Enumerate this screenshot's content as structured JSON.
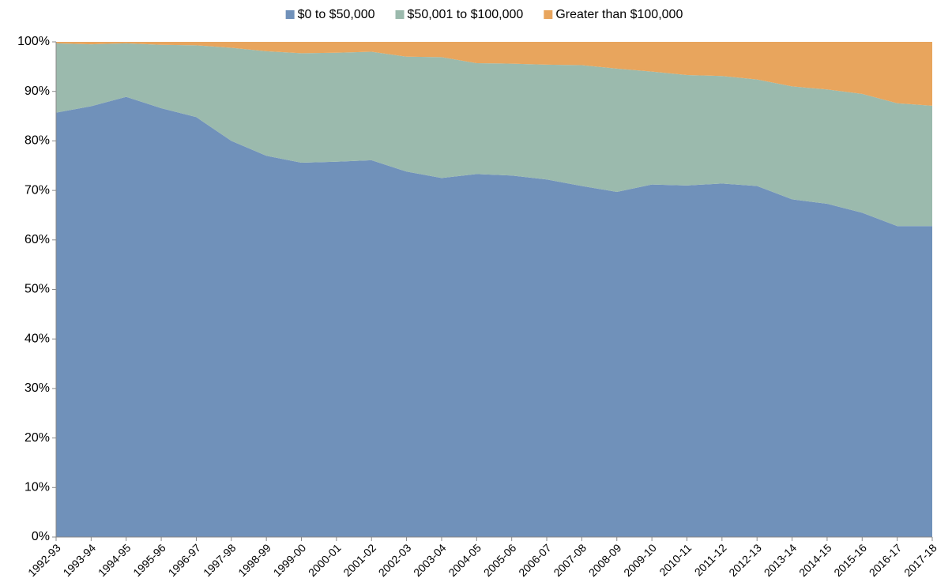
{
  "chart_data": {
    "type": "stacked_area",
    "categories": [
      "1992-93",
      "1993-94",
      "1994-95",
      "1995-96",
      "1996-97",
      "1997-98",
      "1998-99",
      "1999-00",
      "2000-01",
      "2001-02",
      "2002-03",
      "2003-04",
      "2004-05",
      "2005-06",
      "2006-07",
      "2007-08",
      "2008-09",
      "2009-10",
      "2010-11",
      "2011-12",
      "2012-13",
      "2013-14",
      "2014-15",
      "2015-16",
      "2016-17",
      "2017-18"
    ],
    "series": [
      {
        "name": "$0 to $50,000",
        "color": "#7091ba",
        "values": [
          85.7,
          87,
          88.9,
          86.6,
          84.8,
          80,
          77,
          75.6,
          75.8,
          76.1,
          73.8,
          72.5,
          73.3,
          73,
          72.2,
          70.9,
          69.7,
          71.2,
          71,
          71.4,
          70.9,
          68.2,
          67.3,
          65.5,
          62.8,
          62.8
        ]
      },
      {
        "name": "$50,001 to $100,000",
        "color": "#9bbaad",
        "values": [
          14.0,
          12.5,
          10.8,
          12.8,
          14.5,
          18.8,
          21.1,
          22.1,
          22.0,
          21.9,
          23.2,
          24.4,
          22.4,
          22.6,
          23.2,
          24.4,
          24.9,
          22.8,
          22.3,
          21.7,
          21.5,
          22.8,
          23.1,
          24.0,
          24.8,
          24.3
        ]
      },
      {
        "name": "Greater than $100,000",
        "color": "#e8a55d",
        "values": [
          0.3,
          0.5,
          0.3,
          0.6,
          0.7,
          1.2,
          1.9,
          2.3,
          2.2,
          2.0,
          3.0,
          3.1,
          4.3,
          4.4,
          4.6,
          4.7,
          5.4,
          6.0,
          6.7,
          6.9,
          7.6,
          9.0,
          9.6,
          10.5,
          12.4,
          12.9
        ]
      }
    ],
    "ylim": [
      0,
      100
    ],
    "yticks": [
      {
        "value": 0,
        "label": "0%"
      },
      {
        "value": 10,
        "label": "10%"
      },
      {
        "value": 20,
        "label": "20%"
      },
      {
        "value": 30,
        "label": "30%"
      },
      {
        "value": 40,
        "label": "40%"
      },
      {
        "value": 50,
        "label": "50%"
      },
      {
        "value": 60,
        "label": "60%"
      },
      {
        "value": 70,
        "label": "70%"
      },
      {
        "value": 80,
        "label": "80%"
      },
      {
        "value": 90,
        "label": "90%"
      },
      {
        "value": 100,
        "label": "100%"
      }
    ],
    "legend": "top"
  }
}
